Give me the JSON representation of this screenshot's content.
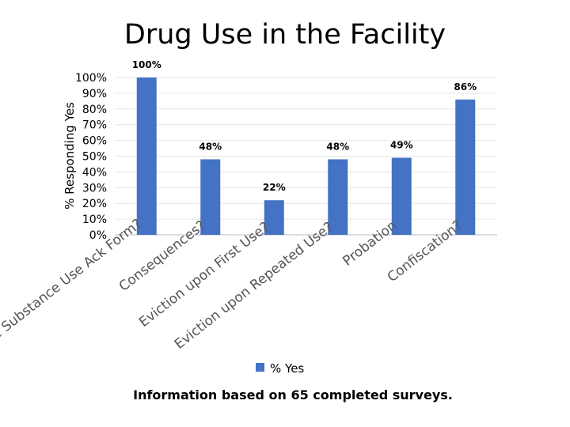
{
  "chart_data": {
    "type": "bar",
    "title": "Drug Use in the Facility",
    "categories": [
      "Complete Substance Use Ack Form?",
      "Consequences?",
      "Eviction upon First Use?",
      "Eviction upon Repeated Use?",
      "Probation",
      "Confiscation?"
    ],
    "series": [
      {
        "name": "% Yes",
        "values": [
          100,
          48,
          22,
          48,
          49,
          86
        ],
        "labels": [
          "100%",
          "48%",
          "22%",
          "48%",
          "49%",
          "86%"
        ],
        "color": "#4472c4"
      }
    ],
    "xlabel": "",
    "ylabel": "% Responding Yes",
    "ylim": [
      0,
      100
    ],
    "yticks": [
      "0%",
      "10%",
      "20%",
      "30%",
      "40%",
      "50%",
      "60%",
      "70%",
      "80%",
      "90%",
      "100%"
    ],
    "grid": true,
    "legend": "bottom",
    "footnote": "Information based on 65 completed surveys."
  }
}
